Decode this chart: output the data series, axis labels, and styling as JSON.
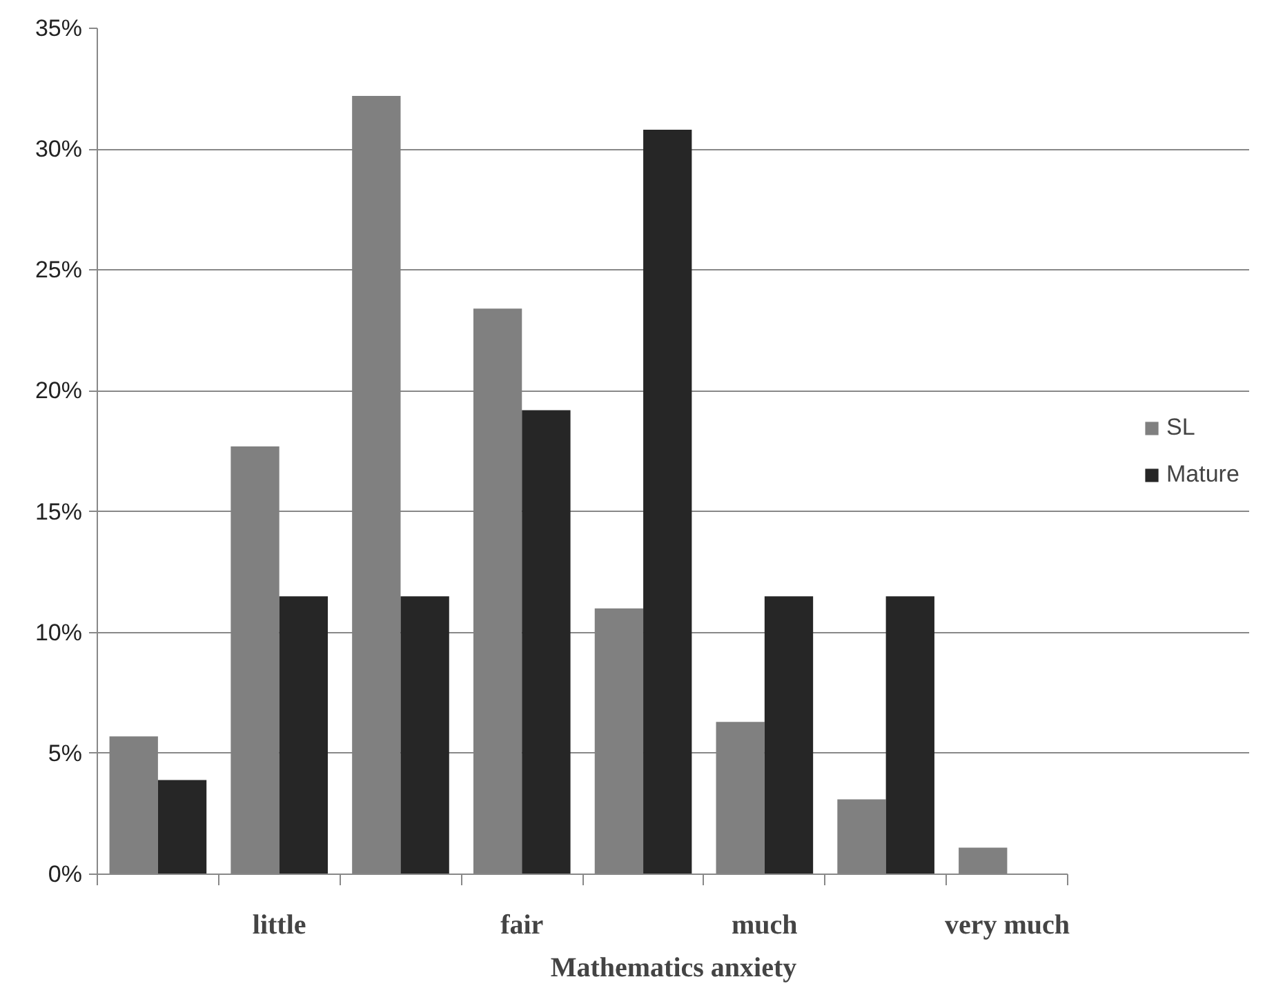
{
  "chart_data": {
    "type": "bar",
    "xlabel": "Mathematics anxiety",
    "categories": [
      null,
      "little",
      null,
      "fair",
      null,
      "much",
      null,
      "very much"
    ],
    "series": [
      {
        "name": "SL",
        "color": "#808080",
        "values": [
          5.7,
          17.7,
          32.2,
          23.4,
          11.0,
          6.3,
          3.1,
          1.1
        ]
      },
      {
        "name": "Mature",
        "color": "#262626",
        "values": [
          3.9,
          11.5,
          11.5,
          19.2,
          30.8,
          11.5,
          11.5,
          null
        ]
      }
    ],
    "ylim": [
      0,
      35
    ],
    "yticks": [
      {
        "value": 0,
        "label": "0%"
      },
      {
        "value": 5,
        "label": "5%"
      },
      {
        "value": 10,
        "label": "10%"
      },
      {
        "value": 15,
        "label": "15%"
      },
      {
        "value": 20,
        "label": "20%"
      },
      {
        "value": 25,
        "label": "25%"
      },
      {
        "value": 30,
        "label": "30%"
      },
      {
        "value": 35,
        "label": "35%"
      }
    ],
    "grid": "y",
    "legend": "right"
  }
}
